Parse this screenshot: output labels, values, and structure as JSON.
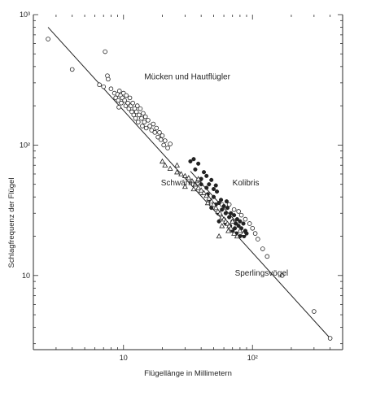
{
  "chart_data": {
    "type": "scatter",
    "title": "",
    "xlabel": "Flügellänge in Millimetern",
    "ylabel": "Schlagfrequenz der Flügel",
    "x_scale": "log",
    "y_scale": "log",
    "xlim": [
      2.0,
      500
    ],
    "ylim": [
      2.7,
      1000
    ],
    "grid": false,
    "x_ticks": [
      {
        "value": 10,
        "label": "10"
      },
      {
        "value": 100,
        "label": "10²"
      }
    ],
    "y_ticks": [
      {
        "value": 10,
        "label": "10"
      },
      {
        "value": 100,
        "label": "10²"
      },
      {
        "value": 1000,
        "label": "10³"
      }
    ],
    "colors": {
      "ink": "#222222",
      "background": "#ffffff"
    },
    "annotations": [
      {
        "text": "Mücken und Hautflügler",
        "x": 14.5,
        "y": 320
      },
      {
        "text": "Schwärmer",
        "x": 19.5,
        "y": 49
      },
      {
        "text": "Kolibris",
        "x": 70,
        "y": 49
      },
      {
        "text": "Sperlingsvögel",
        "x": 73,
        "y": 10
      }
    ],
    "fit_lines": [
      {
        "from": [
          2.6,
          800
        ],
        "to": [
          400,
          3.3
        ]
      },
      {
        "from": [
          33,
          63
        ],
        "to": [
          80,
          24
        ]
      }
    ],
    "series": [
      {
        "marker": "open-circle",
        "points": [
          [
            2.6,
            650
          ],
          [
            4.0,
            380
          ],
          [
            7.2,
            520
          ],
          [
            7.5,
            340
          ],
          [
            7.6,
            320
          ],
          [
            6.5,
            290
          ],
          [
            7.0,
            280
          ],
          [
            8.0,
            270
          ],
          [
            8.5,
            250
          ],
          [
            8.7,
            230
          ],
          [
            9.0,
            245
          ],
          [
            9.1,
            220
          ],
          [
            9.3,
            260
          ],
          [
            9.5,
            240
          ],
          [
            9.6,
            210
          ],
          [
            9.8,
            230
          ],
          [
            10.0,
            250
          ],
          [
            10.2,
            220
          ],
          [
            10.4,
            200
          ],
          [
            10.5,
            240
          ],
          [
            10.8,
            210
          ],
          [
            11.0,
            190
          ],
          [
            11.2,
            230
          ],
          [
            11.4,
            200
          ],
          [
            11.6,
            180
          ],
          [
            11.8,
            210
          ],
          [
            12.0,
            170
          ],
          [
            12.2,
            190
          ],
          [
            12.4,
            160
          ],
          [
            12.6,
            180
          ],
          [
            12.8,
            200
          ],
          [
            13.0,
            150
          ],
          [
            13.2,
            170
          ],
          [
            13.5,
            190
          ],
          [
            13.8,
            160
          ],
          [
            14.0,
            140
          ],
          [
            14.2,
            175
          ],
          [
            14.5,
            150
          ],
          [
            14.8,
            165
          ],
          [
            15.0,
            135
          ],
          [
            15.5,
            155
          ],
          [
            16.0,
            140
          ],
          [
            16.5,
            130
          ],
          [
            17.0,
            145
          ],
          [
            17.5,
            125
          ],
          [
            18.0,
            135
          ],
          [
            18.5,
            115
          ],
          [
            19.0,
            125
          ],
          [
            19.5,
            110
          ],
          [
            20.0,
            118
          ],
          [
            20.5,
            100
          ],
          [
            21.0,
            108
          ],
          [
            22.0,
            95
          ],
          [
            23.0,
            102
          ],
          [
            9.2,
            195
          ],
          [
            40,
            43
          ],
          [
            58,
            35
          ],
          [
            66,
            35
          ],
          [
            72,
            32
          ],
          [
            78,
            31
          ],
          [
            82,
            29
          ],
          [
            88,
            27
          ],
          [
            95,
            25
          ],
          [
            100,
            23
          ],
          [
            105,
            21
          ],
          [
            110,
            19
          ],
          [
            120,
            16
          ],
          [
            130,
            14
          ],
          [
            170,
            10
          ],
          [
            300,
            5.3
          ],
          [
            400,
            3.3
          ]
        ]
      },
      {
        "marker": "filled-circle",
        "points": [
          [
            33,
            75
          ],
          [
            35,
            78
          ],
          [
            38,
            72
          ],
          [
            36,
            65
          ],
          [
            42,
            62
          ],
          [
            40,
            55
          ],
          [
            44,
            58
          ],
          [
            46,
            50
          ],
          [
            48,
            54
          ],
          [
            50,
            46
          ],
          [
            52,
            49
          ],
          [
            45,
            42
          ],
          [
            47,
            38
          ],
          [
            50,
            40
          ],
          [
            53,
            44
          ],
          [
            55,
            36
          ],
          [
            57,
            38
          ],
          [
            58,
            32
          ],
          [
            54,
            30
          ],
          [
            60,
            34
          ],
          [
            62,
            30
          ],
          [
            64,
            33
          ],
          [
            66,
            28
          ],
          [
            68,
            30
          ],
          [
            70,
            26
          ],
          [
            72,
            29
          ],
          [
            74,
            25
          ],
          [
            76,
            27
          ],
          [
            78,
            24
          ],
          [
            80,
            26
          ],
          [
            82,
            23
          ],
          [
            85,
            25
          ],
          [
            88,
            22
          ],
          [
            90,
            21
          ],
          [
            60,
            27
          ],
          [
            62,
            25
          ],
          [
            70,
            22
          ],
          [
            75,
            21
          ],
          [
            80,
            20
          ],
          [
            55,
            26
          ],
          [
            48,
            33
          ],
          [
            52,
            35
          ],
          [
            44,
            47
          ],
          [
            40,
            50
          ],
          [
            63,
            37
          ],
          [
            67,
            24
          ],
          [
            73,
            23
          ],
          [
            86,
            20
          ]
        ]
      },
      {
        "marker": "open-triangle",
        "points": [
          [
            20,
            75
          ],
          [
            21,
            70
          ],
          [
            23,
            66
          ],
          [
            26,
            62
          ],
          [
            28,
            60
          ],
          [
            30,
            58
          ],
          [
            32,
            56
          ],
          [
            34,
            53
          ],
          [
            36,
            50
          ],
          [
            38,
            47
          ],
          [
            40,
            45
          ],
          [
            42,
            43
          ],
          [
            44,
            41
          ],
          [
            46,
            39
          ],
          [
            48,
            37
          ],
          [
            50,
            35
          ],
          [
            52,
            33
          ],
          [
            54,
            31
          ],
          [
            56,
            30
          ],
          [
            58,
            28
          ],
          [
            60,
            27
          ],
          [
            62,
            26
          ],
          [
            64,
            25
          ],
          [
            66,
            24
          ],
          [
            68,
            23
          ],
          [
            72,
            21
          ],
          [
            76,
            20
          ],
          [
            30,
            48
          ],
          [
            35,
            46
          ],
          [
            45,
            36
          ],
          [
            55,
            20
          ],
          [
            58,
            24
          ],
          [
            65,
            22
          ],
          [
            70,
            26
          ],
          [
            80,
            22
          ],
          [
            85,
            21
          ],
          [
            38,
            55
          ],
          [
            26,
            70
          ]
        ]
      }
    ]
  }
}
